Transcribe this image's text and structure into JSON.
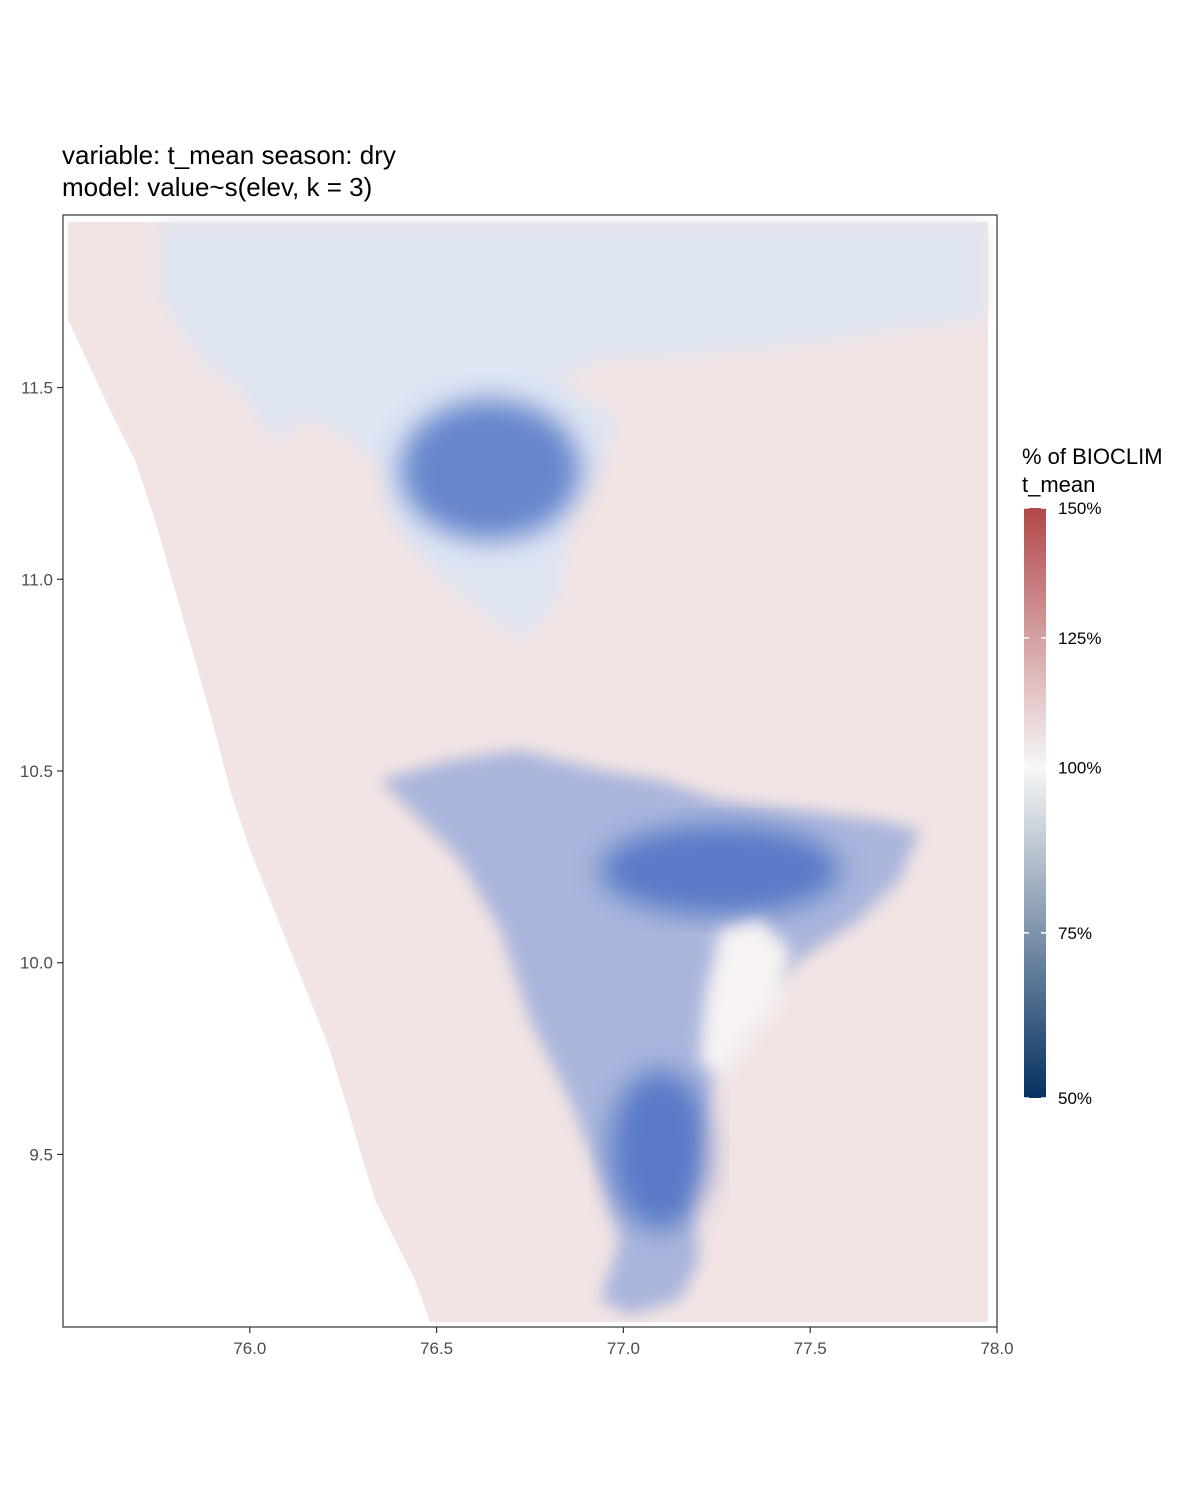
{
  "title_line1": "variable: t_mean season: dry",
  "title_line2": "model: value~s(elev, k = 3)",
  "legend": {
    "title_line1": "% of BIOCLIM",
    "title_line2": "t_mean",
    "ticks": [
      {
        "label": "150%",
        "value": 150
      },
      {
        "label": "125%",
        "value": 125
      },
      {
        "label": "100%",
        "value": 100
      },
      {
        "label": "75%",
        "value": 75
      },
      {
        "label": "50%",
        "value": 50
      }
    ],
    "colors": {
      "low": "#053061",
      "mid": "#f7f7f7",
      "high": "#b2484a"
    }
  },
  "chart_data": {
    "type": "heatmap",
    "xlim": [
      75.5,
      78.0
    ],
    "ylim": [
      9.05,
      11.95
    ],
    "x_ticks": [
      {
        "label": "76.0",
        "value": 76.0
      },
      {
        "label": "76.5",
        "value": 76.5
      },
      {
        "label": "77.0",
        "value": 77.0
      },
      {
        "label": "77.5",
        "value": 77.5
      },
      {
        "label": "78.0",
        "value": 78.0
      }
    ],
    "y_ticks": [
      {
        "label": "11.5",
        "value": 11.5
      },
      {
        "label": "11.0",
        "value": 11.0
      },
      {
        "label": "10.5",
        "value": 10.5
      },
      {
        "label": "10.0",
        "value": 10.0
      },
      {
        "label": "9.5",
        "value": 9.5
      }
    ],
    "grid": false,
    "legend_position": "right",
    "colors": {
      "land_fill": "#f3e4e4",
      "cool_region": "#6f8fd6",
      "cold_core": "#3f66c0"
    }
  }
}
